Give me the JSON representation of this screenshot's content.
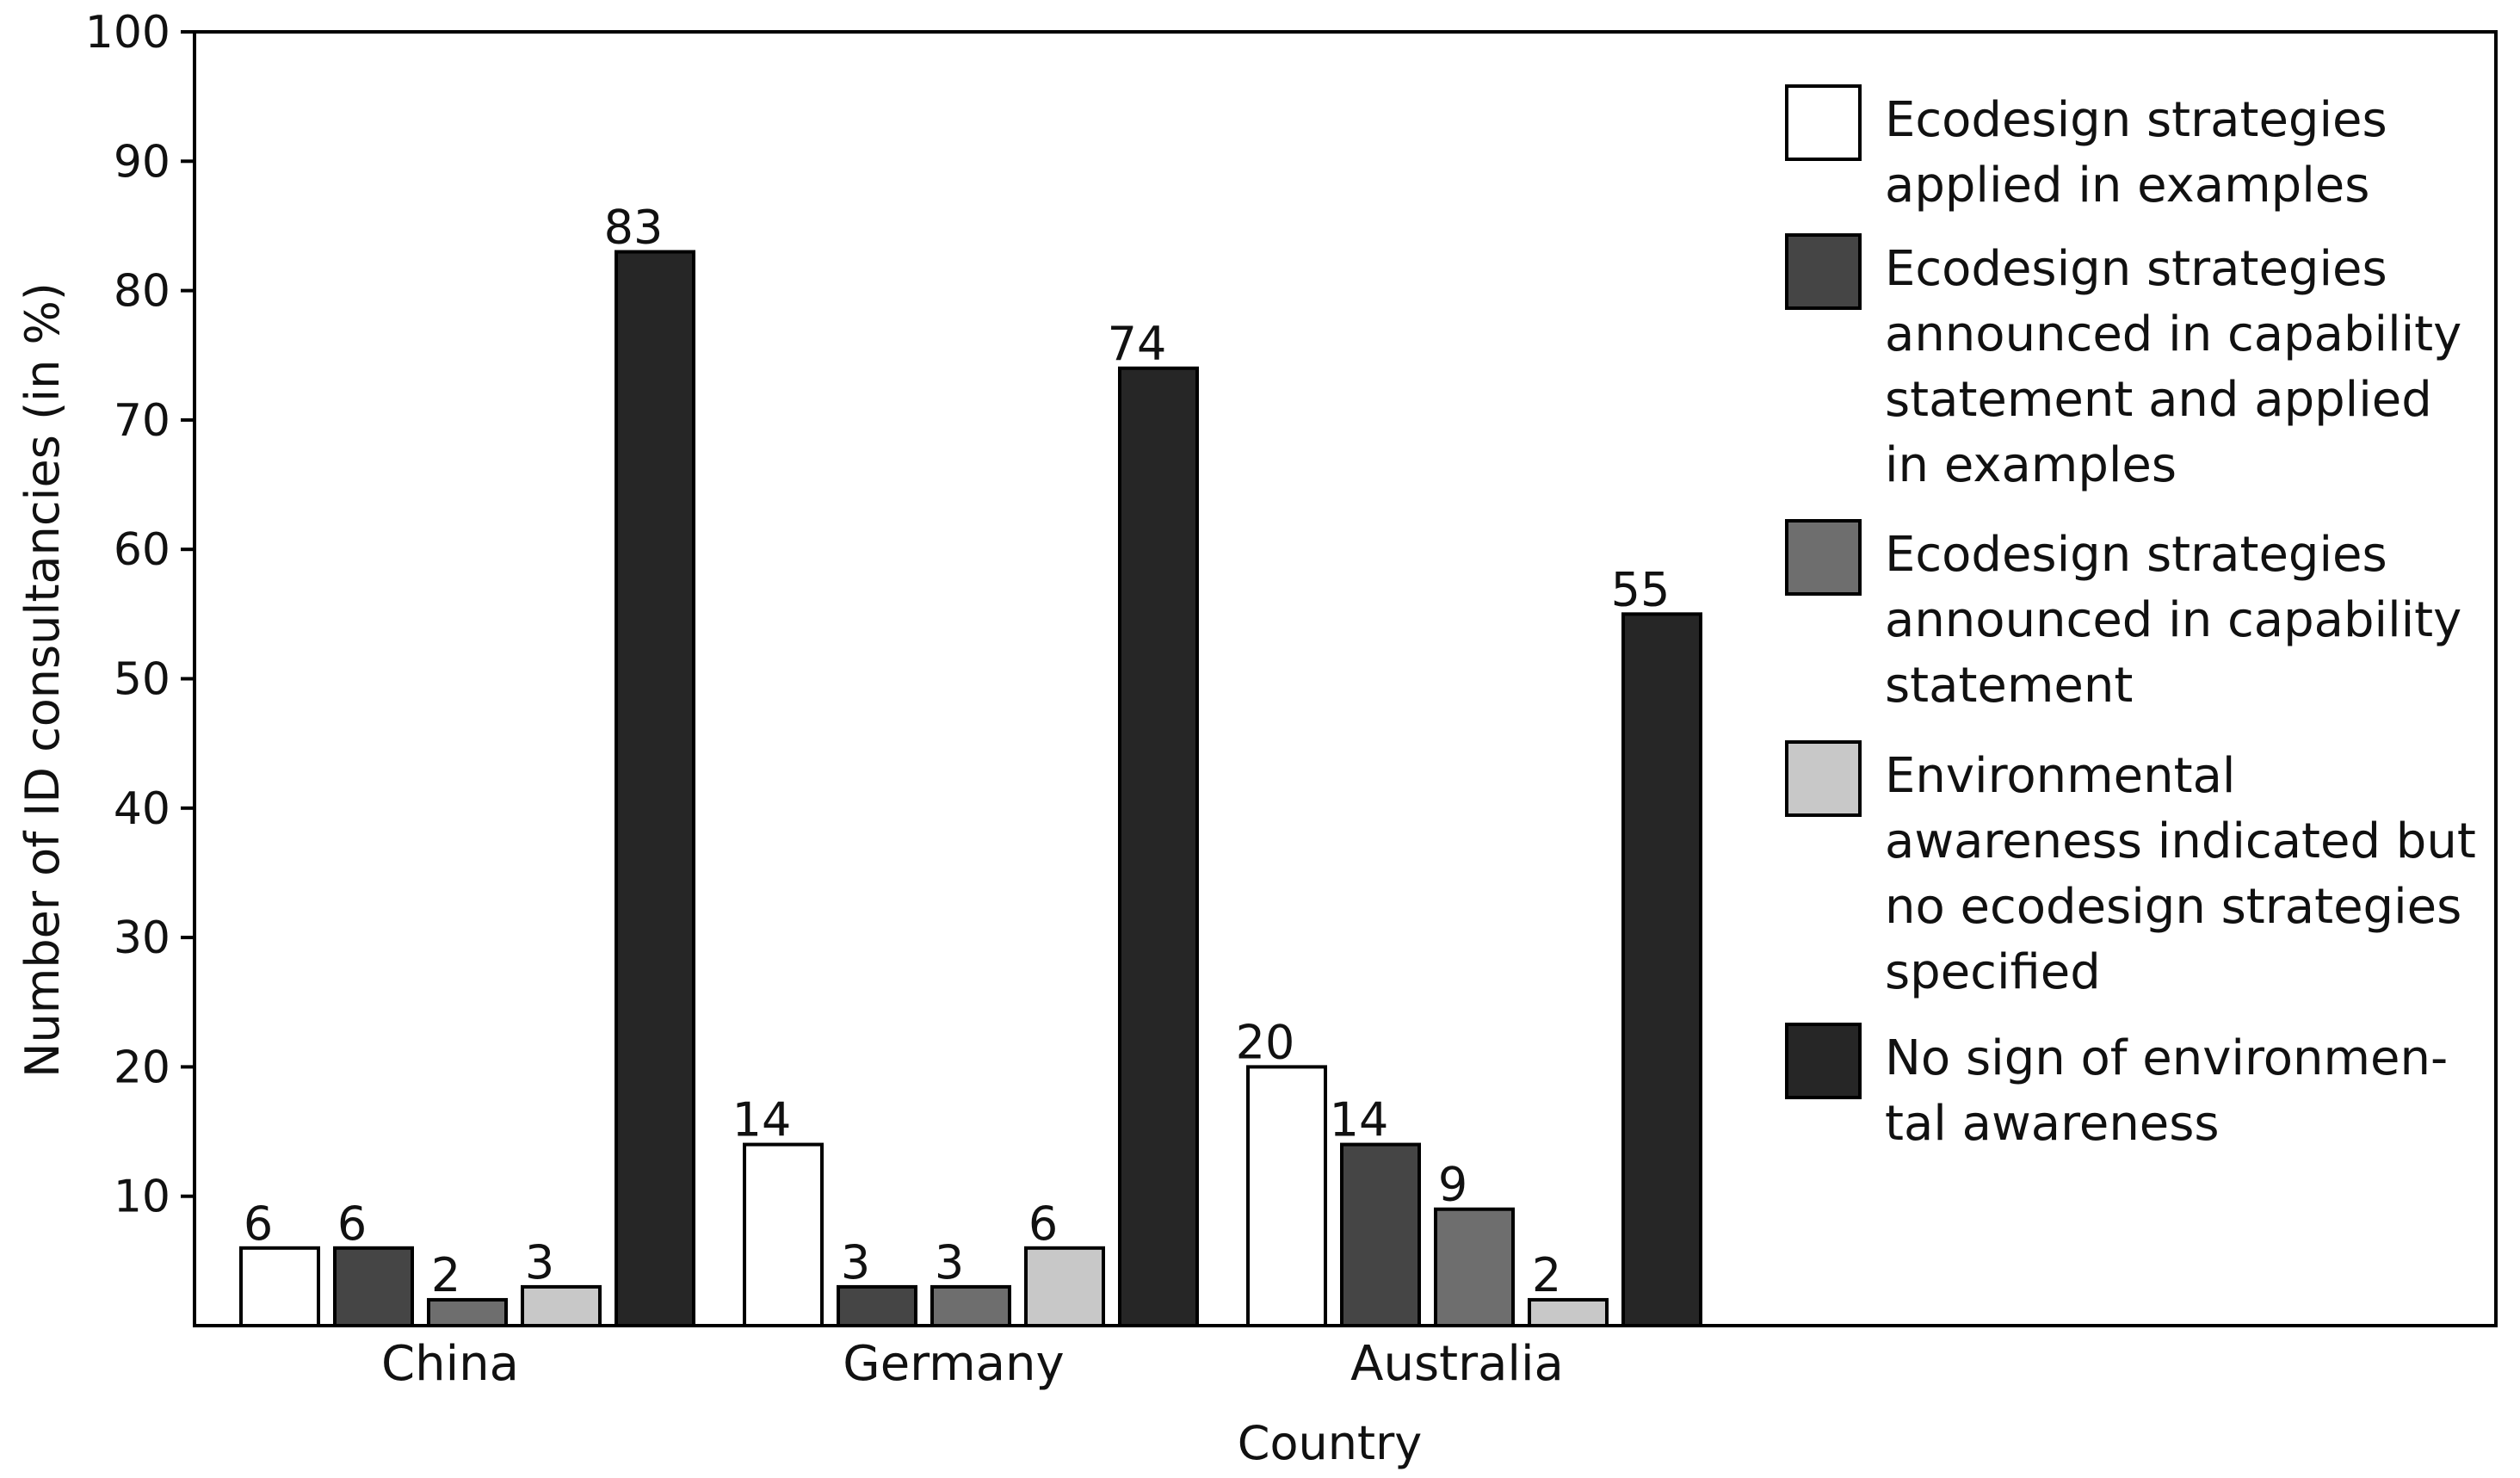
{
  "chart_data": {
    "type": "bar",
    "title": "",
    "xlabel": "Country",
    "ylabel": "Number of ID consultancies (in %)",
    "ylim": [
      0,
      100
    ],
    "yticks": [
      10,
      20,
      30,
      40,
      50,
      60,
      70,
      80,
      90,
      100
    ],
    "categories": [
      "China",
      "Germany",
      "Australia"
    ],
    "series": [
      {
        "name": "Ecodesign strategies applied in examples",
        "legend_lines": [
          "Ecodesign strategies",
          "applied in examples"
        ],
        "color": "#ffffff",
        "values": [
          6,
          14,
          20
        ]
      },
      {
        "name": "Ecodesign strategies announced in capability statement and applied in examples",
        "legend_lines": [
          "Ecodesign strategies",
          "announced in capability",
          "statement and applied",
          "in examples"
        ],
        "color": "#454545",
        "values": [
          6,
          3,
          14
        ]
      },
      {
        "name": "Ecodesign strategies announced in capability statement",
        "legend_lines": [
          "Ecodesign strategies",
          "announced in capability",
          "statement"
        ],
        "color": "#6e6e6e",
        "values": [
          2,
          3,
          9
        ]
      },
      {
        "name": "Environmental awareness indicated but no ecodesign strategies specified",
        "legend_lines": [
          "Environmental",
          "awareness indicated but",
          "no ecodesign strategies",
          "specified"
        ],
        "color": "#c8c8c8",
        "values": [
          3,
          6,
          2
        ]
      },
      {
        "name": "No sign of environmental awareness",
        "legend_lines": [
          "No sign of environmen-",
          "tal awareness"
        ],
        "color": "#262626",
        "values": [
          83,
          74,
          55
        ]
      }
    ],
    "grid": false,
    "legend_position": "right"
  }
}
